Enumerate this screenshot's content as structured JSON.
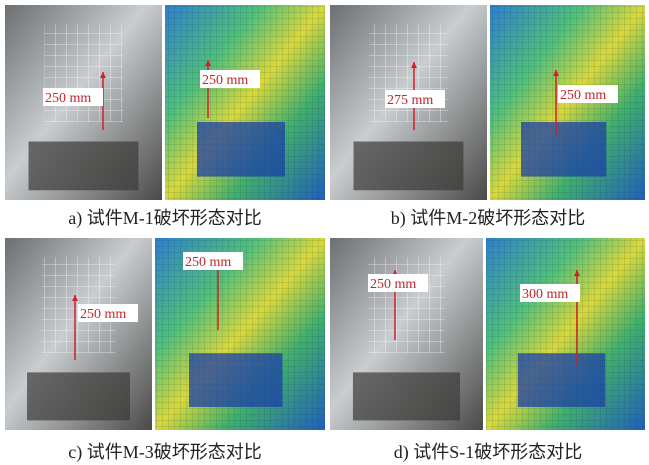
{
  "panels": [
    {
      "caption": "a) 试件M-1破坏形态对比",
      "annotations": [
        "250 mm",
        "250 mm"
      ]
    },
    {
      "caption": "b) 试件M-2破坏形态对比",
      "annotations": [
        "275 mm",
        "250 mm"
      ]
    },
    {
      "caption": "c) 试件M-3破坏形态对比",
      "annotations": [
        "250 mm",
        "250 mm"
      ]
    },
    {
      "caption": "d) 试件S-1破坏形态对比",
      "annotations": [
        "250 mm",
        "300 mm"
      ]
    }
  ]
}
